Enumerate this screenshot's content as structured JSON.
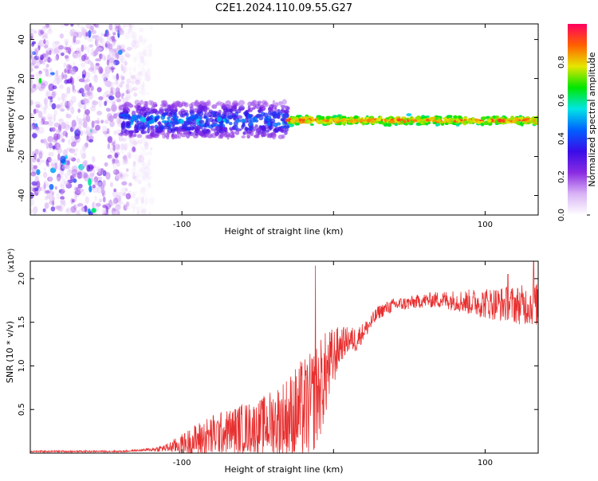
{
  "title": "C2E1.2024.110.09.55.G27",
  "chart_data": [
    {
      "type": "heatmap",
      "xlabel": "Height of straight line (km)",
      "ylabel": "Frequency (Hz)",
      "xlim": [
        -200,
        135
      ],
      "ylim": [
        -50,
        48
      ],
      "x_ticks": [
        -100,
        0,
        100
      ],
      "x_tick_labels": [
        "-100",
        "",
        "100"
      ],
      "y_ticks": [
        -40,
        -20,
        0,
        20,
        40
      ],
      "y_tick_labels": [
        "-40",
        "-20",
        "0",
        "20",
        "40"
      ],
      "colorbar": {
        "label": "Normalized spectral amplitude",
        "range": [
          0,
          1
        ],
        "ticks": [
          0.0,
          0.2,
          0.4,
          0.6,
          0.8
        ],
        "tick_labels": [
          "0.0",
          "0.2",
          "0.4",
          "0.6",
          "0.8"
        ],
        "colors": [
          "#ffffff",
          "#d9b3f5",
          "#8a2be2",
          "#3a0ce8",
          "#0060ff",
          "#00e5e5",
          "#00e600",
          "#e6e600",
          "#ff6000",
          "#ff0060"
        ]
      },
      "features": [
        {
          "region": "noise",
          "x_range": [
            -200,
            -120
          ],
          "freq_range": [
            -50,
            48
          ],
          "amplitude": [
            0.05,
            0.35
          ]
        },
        {
          "region": "tone",
          "x_range": [
            -140,
            -30
          ],
          "freq_range": [
            -10,
            8
          ],
          "amplitude": [
            0.15,
            0.55
          ]
        },
        {
          "region": "tone",
          "x_range": [
            -30,
            135
          ],
          "freq_center": -1.5,
          "freq_halfwidth": 2,
          "amplitude": [
            0.45,
            0.95
          ]
        }
      ],
      "grid": false,
      "legend": "none"
    },
    {
      "type": "line",
      "xlabel": "Height of straight line (km)",
      "ylabel": "SNR (10 * v/v)",
      "y_multiplier": "(x10⁴)",
      "xlim": [
        -200,
        135
      ],
      "ylim": [
        0,
        2.2
      ],
      "x_ticks": [
        -100,
        0,
        100
      ],
      "x_tick_labels": [
        "-100",
        "",
        "100"
      ],
      "y_ticks": [
        0.5,
        1.0,
        1.5,
        2.0
      ],
      "y_tick_labels": [
        "0.5",
        "1.0",
        "1.5",
        "2.0"
      ],
      "series_color": "#e83030",
      "x": [
        -200,
        -180,
        -160,
        -140,
        -130,
        -120,
        -110,
        -100,
        -90,
        -80,
        -70,
        -60,
        -50,
        -40,
        -30,
        -20,
        -15,
        -10,
        -5,
        0,
        5,
        10,
        15,
        20,
        25,
        30,
        40,
        50,
        60,
        70,
        80,
        90,
        100,
        110,
        120,
        135
      ],
      "y_mean": [
        0.02,
        0.02,
        0.02,
        0.02,
        0.03,
        0.04,
        0.06,
        0.1,
        0.15,
        0.2,
        0.25,
        0.28,
        0.3,
        0.35,
        0.4,
        0.5,
        0.55,
        0.7,
        0.9,
        1.1,
        1.25,
        1.3,
        1.3,
        1.4,
        1.5,
        1.62,
        1.7,
        1.72,
        1.75,
        1.76,
        1.75,
        1.73,
        1.72,
        1.71,
        1.7,
        1.7
      ],
      "y_spread": [
        0.01,
        0.01,
        0.01,
        0.01,
        0.01,
        0.02,
        0.05,
        0.12,
        0.2,
        0.25,
        0.25,
        0.3,
        0.3,
        0.4,
        0.5,
        0.6,
        0.6,
        0.6,
        0.5,
        0.35,
        0.2,
        0.15,
        0.15,
        0.1,
        0.1,
        0.08,
        0.08,
        0.08,
        0.08,
        0.1,
        0.12,
        0.15,
        0.18,
        0.2,
        0.22,
        0.25
      ],
      "peaks": [
        {
          "x": -12,
          "y": 2.15
        },
        {
          "x": 132,
          "y": 2.2
        },
        {
          "x": 115,
          "y": 2.05
        }
      ],
      "grid": false,
      "legend": "none"
    }
  ]
}
